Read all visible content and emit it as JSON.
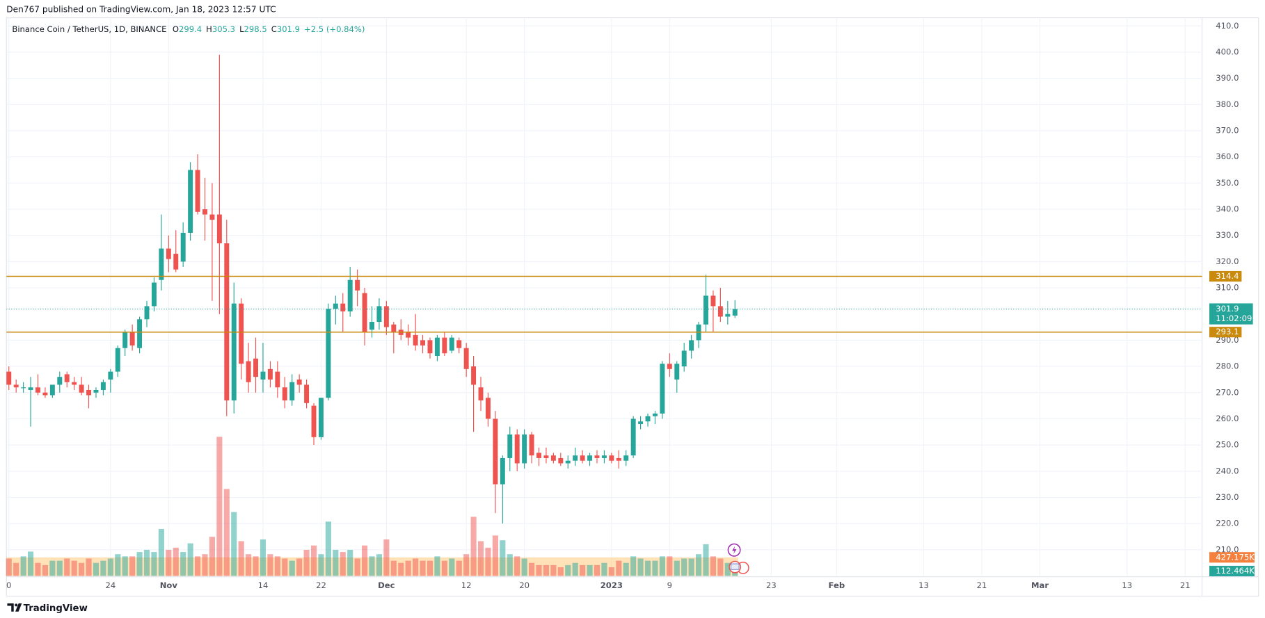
{
  "chart_data": {
    "type": "candlestick",
    "header": "Den767 published on TradingView.com, Jan 18, 2023 12:57 UTC",
    "title": "Binance Coin / TetherUS, 1D, BINANCE",
    "ohlc": [
      {
        "key": "O",
        "value": 299.4
      },
      {
        "key": "H",
        "value": 305.3
      },
      {
        "key": "L",
        "value": 298.5
      },
      {
        "key": "C",
        "value": 301.9
      }
    ],
    "change": {
      "value": 2.5,
      "label": "+2.5"
    },
    "change_percent": {
      "value": 0.84,
      "label": "(+0.84%)"
    },
    "brand": "TradingView",
    "up_color": "#26a69a",
    "down_color": "#ef5350",
    "level_color": "#c98a0d",
    "grid": true,
    "ylim": [
      200,
      413.1
    ],
    "yticks": [
      {
        "value": 210,
        "label": "210.0"
      },
      {
        "value": 220,
        "label": "220.0"
      },
      {
        "value": 230,
        "label": "230.0"
      },
      {
        "value": 240,
        "label": "240.0"
      },
      {
        "value": 250,
        "label": "250.0"
      },
      {
        "value": 260,
        "label": "260.0"
      },
      {
        "value": 270,
        "label": "270.0"
      },
      {
        "value": 280,
        "label": "280.0"
      },
      {
        "value": 290,
        "label": "290.0"
      },
      {
        "value": 310,
        "label": "310.0"
      },
      {
        "value": 320,
        "label": "320.0"
      },
      {
        "value": 330,
        "label": "330.0"
      },
      {
        "value": 340,
        "label": "340.0"
      },
      {
        "value": 350,
        "label": "350.0"
      },
      {
        "value": 360,
        "label": "360.0"
      },
      {
        "value": 370,
        "label": "370.0"
      },
      {
        "value": 380,
        "label": "380.0"
      },
      {
        "value": 390,
        "label": "390.0"
      },
      {
        "value": 400,
        "label": "400.0"
      },
      {
        "value": 410,
        "label": "410.0"
      }
    ],
    "xticks": [
      {
        "value": "Oct 10",
        "label": "0"
      },
      {
        "value": "Oct 24",
        "label": "24"
      },
      {
        "value": "Nov 1",
        "label": "Nov"
      },
      {
        "value": "Nov 14",
        "label": "14"
      },
      {
        "value": "Nov 22",
        "label": "22"
      },
      {
        "value": "Dec 1",
        "label": "Dec"
      },
      {
        "value": "Dec 12",
        "label": "12"
      },
      {
        "value": "Dec 20",
        "label": "20"
      },
      {
        "value": "Jan 1",
        "label": "2023"
      },
      {
        "value": "Jan 9",
        "label": "9"
      },
      {
        "value": "Jan 23",
        "label": "23"
      },
      {
        "value": "Feb 1",
        "label": "Feb"
      },
      {
        "value": "Feb 13",
        "label": "13"
      },
      {
        "value": "Feb 21",
        "label": "21"
      },
      {
        "value": "Mar 1",
        "label": "Mar"
      },
      {
        "value": "Mar 13",
        "label": "13"
      },
      {
        "value": "Mar 21",
        "label": "21"
      }
    ],
    "levels": [
      314.4,
      293.1
    ],
    "last_price": 301.9,
    "countdown": "11:02:09",
    "volume_ma": {
      "value": 427175,
      "label": "427.175K"
    },
    "last_volume": {
      "value": 112464,
      "label": "112.464K"
    },
    "x": [
      "Oct 10",
      "Oct 11",
      "Oct 12",
      "Oct 13",
      "Oct 14",
      "Oct 15",
      "Oct 16",
      "Oct 17",
      "Oct 18",
      "Oct 19",
      "Oct 20",
      "Oct 21",
      "Oct 22",
      "Oct 23",
      "Oct 24",
      "Oct 25",
      "Oct 26",
      "Oct 27",
      "Oct 28",
      "Oct 29",
      "Oct 30",
      "Oct 31",
      "Nov 1",
      "Nov 2",
      "Nov 3",
      "Nov 4",
      "Nov 5",
      "Nov 6",
      "Nov 7",
      "Nov 8",
      "Nov 9",
      "Nov 10",
      "Nov 11",
      "Nov 12",
      "Nov 13",
      "Nov 14",
      "Nov 15",
      "Nov 16",
      "Nov 17",
      "Nov 18",
      "Nov 19",
      "Nov 20",
      "Nov 21",
      "Nov 22",
      "Nov 23",
      "Nov 24",
      "Nov 25",
      "Nov 26",
      "Nov 27",
      "Nov 28",
      "Nov 29",
      "Nov 30",
      "Dec 1",
      "Dec 2",
      "Dec 3",
      "Dec 4",
      "Dec 5",
      "Dec 6",
      "Dec 7",
      "Dec 8",
      "Dec 9",
      "Dec 10",
      "Dec 11",
      "Dec 12",
      "Dec 13",
      "Dec 14",
      "Dec 15",
      "Dec 16",
      "Dec 17",
      "Dec 18",
      "Dec 19",
      "Dec 20",
      "Dec 21",
      "Dec 22",
      "Dec 23",
      "Dec 24",
      "Dec 25",
      "Dec 26",
      "Dec 27",
      "Dec 28",
      "Dec 29",
      "Dec 30",
      "Dec 31",
      "Jan 1",
      "Jan 2",
      "Jan 3",
      "Jan 4",
      "Jan 5",
      "Jan 6",
      "Jan 7",
      "Jan 8",
      "Jan 9",
      "Jan 10",
      "Jan 11",
      "Jan 12",
      "Jan 13",
      "Jan 14",
      "Jan 15",
      "Jan 16",
      "Jan 17",
      "Jan 18"
    ],
    "open": [
      278,
      273,
      272,
      271,
      272,
      270,
      269,
      273,
      277,
      274,
      273,
      271,
      270,
      271,
      275,
      278,
      287,
      293,
      287,
      298,
      303,
      313,
      325,
      323,
      320,
      331,
      355,
      340,
      338,
      338,
      327,
      267,
      304,
      282,
      283,
      275,
      279,
      278,
      272,
      267,
      275,
      273,
      265,
      253,
      268,
      302,
      304,
      301,
      313,
      308,
      294,
      297,
      303,
      296,
      294,
      293,
      292,
      290,
      290,
      284,
      291,
      286,
      290,
      287,
      280,
      272,
      268,
      260,
      235,
      245,
      254,
      243,
      254,
      247,
      246,
      246,
      245,
      243,
      244,
      246,
      244,
      246,
      245,
      246,
      245,
      244,
      246,
      258,
      259,
      261,
      262,
      281,
      275,
      280,
      286,
      290,
      296,
      307,
      303,
      299,
      299.4
    ],
    "high": [
      280,
      275,
      274,
      276,
      277,
      272,
      273,
      278,
      278,
      276,
      276,
      273,
      272,
      275,
      279,
      288,
      294,
      296,
      299,
      305,
      314,
      338,
      330,
      332,
      335,
      358,
      361,
      352,
      350,
      399,
      336,
      312,
      306,
      289,
      291,
      289,
      282,
      282,
      276,
      277,
      277,
      275,
      266,
      268,
      304,
      307,
      308,
      318,
      317,
      310,
      303,
      306,
      305,
      297,
      298,
      296,
      300,
      292,
      291,
      292,
      293,
      292,
      291,
      289,
      284,
      276,
      270,
      263,
      246,
      257,
      256,
      256,
      255,
      249,
      249,
      247,
      247,
      246,
      249,
      248,
      247,
      248,
      248,
      247,
      248,
      248,
      261,
      261,
      262,
      263,
      282,
      285,
      282,
      289,
      292,
      297,
      315,
      309,
      310,
      305,
      305.3
    ],
    "low": [
      271,
      270,
      270,
      257,
      269,
      268,
      268,
      270,
      272,
      271,
      269,
      264,
      268,
      269,
      270,
      276,
      284,
      286,
      285,
      295,
      301,
      309,
      316,
      316,
      318,
      328,
      338,
      328,
      305,
      300,
      261,
      262,
      275,
      270,
      270,
      270,
      272,
      268,
      264,
      265,
      270,
      264,
      250,
      252,
      267,
      296,
      293,
      299,
      303,
      288,
      291,
      294,
      292,
      285,
      290,
      288,
      286,
      285,
      283,
      282,
      284,
      285,
      285,
      276,
      255,
      263,
      257,
      224,
      220,
      240,
      240,
      241,
      243,
      242,
      243,
      243,
      242,
      241,
      242,
      243,
      242,
      243,
      243,
      243,
      241,
      242,
      245,
      256,
      257,
      258,
      260,
      276,
      270,
      278,
      283,
      287,
      293,
      293,
      297,
      296,
      298.5
    ],
    "close": [
      273,
      272,
      272,
      272,
      270,
      269,
      273,
      276,
      274,
      273,
      270,
      269,
      271,
      274,
      278,
      287,
      293,
      288,
      298,
      303,
      312,
      325,
      321,
      317,
      331,
      355,
      339,
      338,
      336,
      327,
      267,
      304,
      281,
      274,
      276,
      278,
      275,
      272,
      267,
      274,
      273,
      266,
      253,
      268,
      302,
      304,
      301,
      313,
      309,
      293,
      297,
      303,
      295,
      293,
      292,
      291,
      288,
      288,
      285,
      291,
      285,
      291,
      287,
      279,
      273,
      267,
      260,
      235,
      245,
      254,
      243,
      254,
      246,
      245,
      245,
      244,
      243,
      244,
      246,
      244,
      246,
      245,
      246,
      244,
      244,
      246,
      260,
      259,
      261,
      262,
      281,
      279,
      281,
      286,
      290,
      296,
      307,
      303,
      299,
      300,
      301.9
    ],
    "volume": [
      400000,
      300000,
      450000,
      560000,
      300000,
      250000,
      350000,
      350000,
      400000,
      350000,
      300000,
      400000,
      300000,
      350000,
      400000,
      500000,
      450000,
      450000,
      550000,
      600000,
      550000,
      1080000,
      600000,
      650000,
      550000,
      750000,
      450000,
      500000,
      900000,
      3200000,
      2000000,
      1470000,
      800000,
      500000,
      450000,
      840000,
      500000,
      450000,
      400000,
      350000,
      400000,
      600000,
      700000,
      500000,
      1250000,
      600000,
      550000,
      600000,
      400000,
      700000,
      450000,
      500000,
      840000,
      350000,
      300000,
      350000,
      400000,
      350000,
      350000,
      450000,
      350000,
      400000,
      350000,
      500000,
      1360000,
      800000,
      650000,
      930000,
      820000,
      500000,
      450000,
      400000,
      300000,
      250000,
      250000,
      250000,
      200000,
      250000,
      300000,
      250000,
      250000,
      250000,
      300000,
      200000,
      350000,
      300000,
      450000,
      400000,
      350000,
      350000,
      450000,
      450000,
      350000,
      400000,
      400000,
      500000,
      730000,
      450000,
      400000,
      300000,
      112464
    ]
  }
}
